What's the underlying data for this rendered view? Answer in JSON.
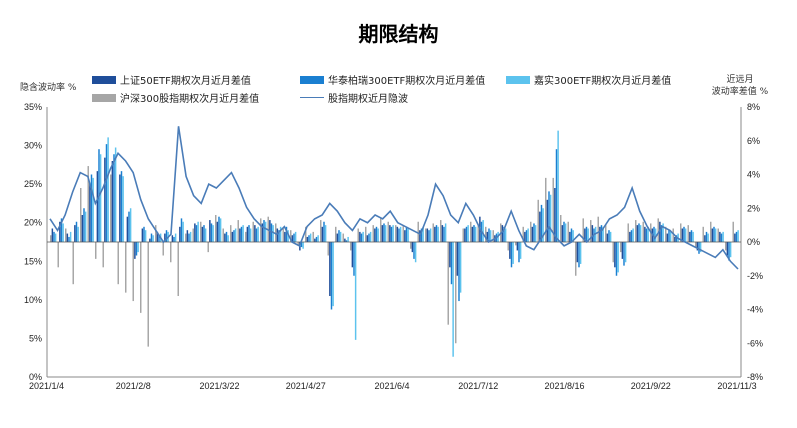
{
  "title": "期限结构",
  "ylabel_left": "隐含波动率 %",
  "ylabel_right_line1": "近远月",
  "ylabel_right_line2": "波动率差值 %",
  "colors": {
    "sse50": "#1f4e9a",
    "huatai300": "#1a7fd1",
    "jiashi300": "#5cc3ee",
    "hushen300index": "#a6a6a6",
    "iv_line": "#4a7cb8"
  },
  "chart_data": {
    "type": "bar",
    "title": "期限结构",
    "xlabel": "",
    "ylabel": "隐含波动率 %",
    "ylabel_right": "近远月波动率差值 %",
    "ylim_left": [
      0,
      35
    ],
    "ylim_right": [
      -8,
      8
    ],
    "yticks_left": [
      "0%",
      "5%",
      "10%",
      "15%",
      "20%",
      "25%",
      "30%",
      "35%"
    ],
    "yticks_right": [
      "-8%",
      "-6%",
      "-4%",
      "-2%",
      "0%",
      "2%",
      "4%",
      "6%",
      "8%"
    ],
    "x_ticks": [
      "2021/1/4",
      "2021/2/8",
      "2021/3/22",
      "2021/4/27",
      "2021/6/4",
      "2021/7/12",
      "2021/8/16",
      "2021/9/22",
      "2021/11/3"
    ],
    "legend_position": "top",
    "series": [
      {
        "name": "上证50ETF期权次月近月差值",
        "axis": "right",
        "kind": "bar",
        "values": [
          0.8,
          1.2,
          0.5,
          1.0,
          1.6,
          3.5,
          4.2,
          5.0,
          4.8,
          4.0,
          1.5,
          -1.0,
          0.8,
          0.2,
          0.6,
          0.5,
          0.4,
          0.9,
          0.7,
          1.1,
          0.9,
          1.3,
          1.2,
          0.5,
          0.6,
          0.8,
          0.9,
          1.0,
          1.1,
          1.3,
          0.8,
          0.6,
          0.4,
          -0.5,
          0.3,
          0.2,
          0.9,
          -3.2,
          0.5,
          0.2,
          -1.5,
          0.6,
          0.4,
          0.8,
          1.0,
          1.0,
          0.9,
          0.7,
          -0.6,
          0.7,
          0.8,
          0.9,
          1.0,
          -1.5,
          -2.0,
          0.8,
          0.9,
          1.5,
          0.6,
          0.4,
          1.0,
          -1.0,
          -0.5,
          0.6,
          0.9,
          1.8,
          2.5,
          3.2,
          1.0,
          0.6,
          -1.2,
          0.8,
          1.0,
          0.9,
          0.5,
          -1.5,
          -1.0,
          0.6,
          1.0,
          0.9,
          0.8,
          1.2,
          0.5,
          0.3,
          0.8,
          0.6,
          -0.5,
          0.4,
          0.8,
          0.6,
          -0.8,
          0.5
        ]
      },
      {
        "name": "华泰柏瑞300ETF期权次月近月差值",
        "axis": "right",
        "kind": "bar",
        "values": [
          0.6,
          1.4,
          0.3,
          1.2,
          2.0,
          4.0,
          5.5,
          5.8,
          5.2,
          4.2,
          1.8,
          -0.8,
          0.9,
          0.5,
          0.4,
          0.7,
          0.3,
          1.4,
          0.5,
          1.0,
          1.0,
          1.1,
          1.5,
          0.6,
          0.7,
          0.9,
          1.0,
          0.8,
          1.3,
          1.1,
          0.7,
          0.9,
          0.5,
          -0.3,
          0.4,
          0.3,
          1.2,
          -4.0,
          0.7,
          0.1,
          -2.0,
          0.5,
          0.5,
          0.9,
          1.1,
          0.9,
          0.8,
          0.9,
          -1.0,
          0.8,
          0.7,
          1.0,
          0.9,
          -2.5,
          -3.5,
          0.9,
          1.0,
          1.2,
          0.8,
          0.5,
          0.9,
          -1.5,
          -1.2,
          0.7,
          1.1,
          2.2,
          3.0,
          5.5,
          1.2,
          0.8,
          -1.5,
          0.9,
          0.8,
          1.0,
          0.7,
          -2.0,
          -1.4,
          0.7,
          1.1,
          0.8,
          0.9,
          1.0,
          0.7,
          0.4,
          0.9,
          0.7,
          -0.7,
          0.6,
          0.9,
          0.5,
          -1.1,
          0.6
        ]
      },
      {
        "name": "嘉实300ETF期权次月近月差值",
        "axis": "right",
        "kind": "bar",
        "values": [
          0.5,
          1.1,
          0.6,
          0.9,
          1.8,
          3.8,
          5.2,
          6.2,
          5.6,
          3.9,
          2.0,
          -0.6,
          0.7,
          0.4,
          0.5,
          0.6,
          0.5,
          1.2,
          0.6,
          1.2,
          0.8,
          1.0,
          1.4,
          0.4,
          0.8,
          1.0,
          0.8,
          0.9,
          1.2,
          1.0,
          0.9,
          0.7,
          0.6,
          -0.4,
          0.5,
          0.4,
          1.0,
          -3.8,
          0.6,
          0.3,
          -5.8,
          0.6,
          0.6,
          0.8,
          1.0,
          1.0,
          0.9,
          0.8,
          -1.2,
          0.9,
          0.8,
          0.9,
          1.1,
          -6.8,
          -3.0,
          1.0,
          0.9,
          1.3,
          0.7,
          0.6,
          0.8,
          -1.3,
          -1.0,
          0.8,
          1.0,
          2.0,
          2.8,
          6.6,
          1.1,
          0.7,
          -1.3,
          0.8,
          0.9,
          0.9,
          0.6,
          -1.8,
          -1.2,
          0.8,
          1.0,
          0.9,
          0.8,
          1.1,
          0.6,
          0.5,
          0.8,
          0.6,
          -0.6,
          0.5,
          0.8,
          0.6,
          -0.9,
          0.7
        ]
      },
      {
        "name": "沪深300股指期权次月近月差值",
        "axis": "right",
        "kind": "bar",
        "values": [
          0.4,
          -1.5,
          0.8,
          -2.5,
          3.2,
          4.5,
          -1.0,
          -1.5,
          4.0,
          -2.5,
          -3.0,
          -3.5,
          -4.2,
          -6.2,
          1.0,
          -0.8,
          -1.2,
          -3.2,
          0.5,
          0.8,
          1.2,
          -0.6,
          1.6,
          0.8,
          1.0,
          1.3,
          0.6,
          1.2,
          1.4,
          1.5,
          1.1,
          0.8,
          0.7,
          -0.2,
          0.9,
          0.6,
          1.3,
          -0.8,
          0.9,
          0.5,
          -0.5,
          0.8,
          0.9,
          1.0,
          1.4,
          1.2,
          1.0,
          1.0,
          -0.4,
          1.2,
          0.8,
          1.1,
          1.3,
          -4.9,
          -6.0,
          0.8,
          1.2,
          1.0,
          0.9,
          0.7,
          1.1,
          -0.5,
          -0.2,
          0.9,
          1.2,
          2.5,
          3.8,
          3.8,
          1.6,
          1.2,
          -2.0,
          1.4,
          1.3,
          1.5,
          1.0,
          -1.2,
          -0.6,
          1.1,
          1.3,
          1.2,
          1.1,
          1.4,
          0.9,
          0.8,
          1.1,
          1.0,
          -0.3,
          0.9,
          1.2,
          0.8,
          -0.5,
          1.2
        ]
      },
      {
        "name": "股指期权近月隐波",
        "axis": "left",
        "kind": "line",
        "values": [
          20.5,
          19.0,
          21.0,
          24.0,
          26.5,
          26.0,
          22.5,
          24.5,
          27.0,
          29.0,
          28.0,
          26.5,
          23.0,
          20.5,
          19.0,
          17.5,
          18.5,
          32.5,
          26.0,
          23.5,
          22.5,
          25.0,
          24.5,
          25.5,
          26.5,
          24.5,
          22.0,
          20.5,
          19.5,
          19.0,
          18.5,
          19.5,
          17.5,
          17.0,
          19.5,
          20.5,
          21.0,
          22.5,
          21.5,
          20.0,
          19.0,
          20.5,
          20.0,
          21.0,
          20.5,
          21.5,
          20.0,
          19.5,
          19.0,
          18.5,
          21.0,
          25.0,
          23.5,
          21.0,
          20.0,
          22.5,
          21.0,
          19.0,
          17.5,
          18.0,
          19.0,
          21.5,
          19.0,
          17.0,
          16.5,
          18.0,
          19.5,
          18.0,
          17.0,
          17.5,
          18.5,
          17.5,
          18.5,
          19.0,
          20.5,
          21.0,
          22.0,
          24.5,
          21.5,
          19.5,
          18.0,
          19.5,
          19.0,
          18.0,
          17.5,
          17.0,
          16.5,
          16.0,
          15.5,
          16.5,
          15.0,
          14.0
        ]
      }
    ]
  }
}
